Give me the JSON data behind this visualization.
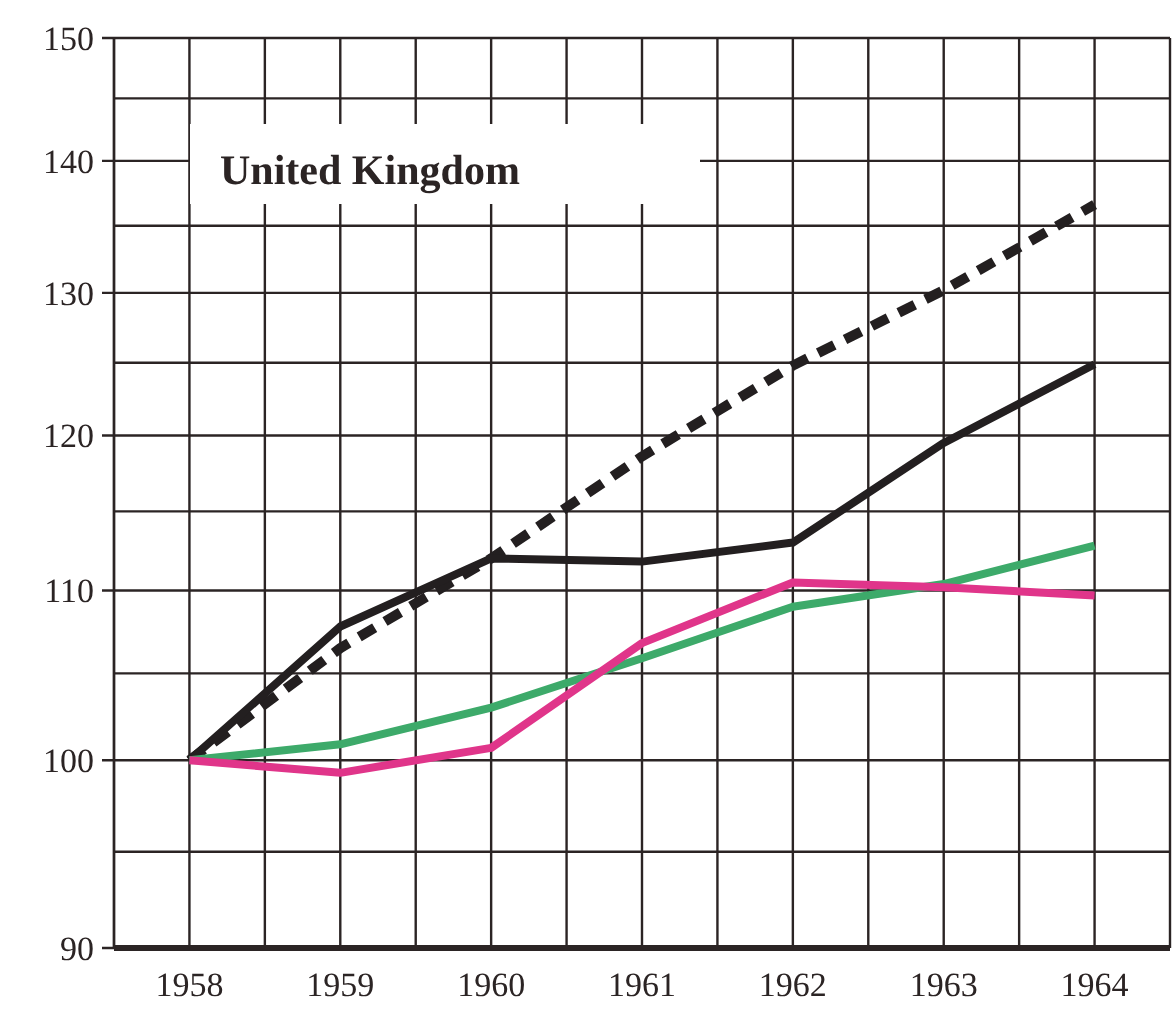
{
  "chart_data": {
    "type": "line",
    "title": "United Kingdom",
    "x": [
      1958,
      1959,
      1960,
      1961,
      1962,
      1963,
      1964
    ],
    "series": [
      {
        "color": "#231f20",
        "values": [
          100,
          106.5,
          112,
          118.6,
          124.8,
          130.2,
          136.6
        ],
        "line_style": "dashed"
      },
      {
        "color": "#231f20",
        "values": [
          100,
          107.8,
          112,
          111.8,
          113,
          119.5,
          124.9
        ]
      },
      {
        "color": "#3daa6a",
        "values": [
          100,
          100.9,
          103,
          105.9,
          109,
          110.4,
          112.8
        ]
      },
      {
        "color": "#e0358a",
        "values": [
          100,
          99.3,
          100.7,
          106.8,
          110.5,
          110.2,
          109.7
        ]
      }
    ],
    "xlim": [
      1957.5,
      1964.5
    ],
    "xticks": [
      {
        "value": 1957.5,
        "label": null
      },
      1958,
      {
        "value": 1958.5,
        "label": null
      },
      1959,
      {
        "value": 1959.5,
        "label": null
      },
      1960,
      {
        "value": 1960.5,
        "label": null
      },
      1961,
      {
        "value": 1961.5,
        "label": null
      },
      1962,
      {
        "value": 1962.5,
        "label": null
      },
      1963,
      {
        "value": 1963.5,
        "label": null
      },
      1964,
      {
        "value": 1964.5,
        "label": null
      }
    ],
    "ylim": [
      90,
      150
    ],
    "log": true,
    "yticks": [
      90,
      {
        "value": 95,
        "label": null
      },
      100,
      {
        "value": 105,
        "label": null
      },
      110,
      {
        "value": 115,
        "label": null
      },
      120,
      {
        "value": 125,
        "label": null
      },
      130,
      {
        "value": 135,
        "label": null
      },
      140,
      {
        "value": 145,
        "label": null
      },
      150
    ],
    "grid": true,
    "marker": "none"
  }
}
